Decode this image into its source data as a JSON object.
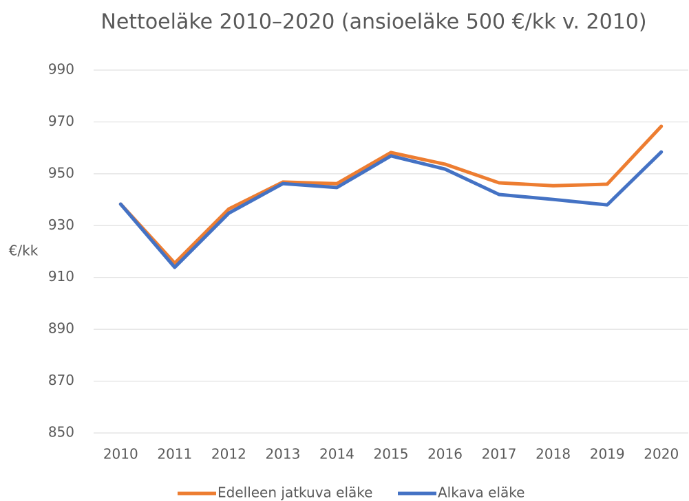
{
  "chart_data": {
    "type": "line",
    "title": "Nettoeläke 2010–2020 (ansioeläke 500 €/kk v. 2010)",
    "y_label": "€/kk",
    "categories": [
      "2010",
      "2011",
      "2012",
      "2013",
      "2014",
      "2015",
      "2016",
      "2017",
      "2018",
      "2019",
      "2020"
    ],
    "series": [
      {
        "name": "Edelleen jatkuva eläke",
        "color": "#ED7D31",
        "values": [
          938.3,
          915.5,
          936.4,
          946.8,
          946.2,
          958.2,
          953.7,
          946.5,
          945.4,
          946.0,
          968.3
        ]
      },
      {
        "name": "Alkava eläke",
        "color": "#4472C4",
        "values": [
          938.3,
          913.9,
          934.8,
          946.2,
          944.7,
          956.9,
          951.8,
          942.0,
          940.1,
          938.0,
          958.4
        ]
      }
    ],
    "ylim": [
      850,
      990
    ],
    "yticks": [
      850,
      870,
      890,
      910,
      930,
      950,
      970,
      990
    ],
    "grid": true,
    "legend": "bottom"
  }
}
